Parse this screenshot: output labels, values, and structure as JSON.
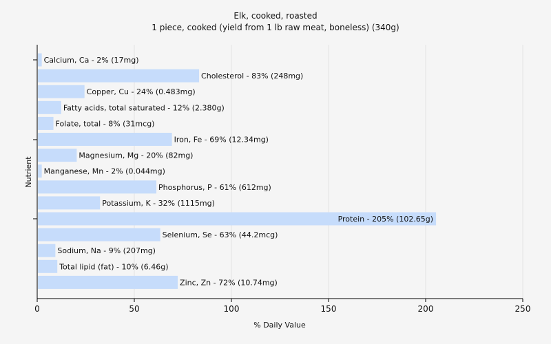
{
  "chart_data": {
    "type": "bar",
    "orientation": "horizontal",
    "title": "Elk, cooked, roasted",
    "subtitle": "1 piece, cooked (yield from 1 lb raw meat, boneless) (340g)",
    "xlabel": "% Daily Value",
    "ylabel": "Nutrient",
    "xlim": [
      0,
      250
    ],
    "xticks": [
      0,
      50,
      100,
      150,
      200,
      250
    ],
    "grid": true,
    "bar_color": "#c6dcfb",
    "categories": [
      "Calcium, Ca - 2% (17mg)",
      "Cholesterol - 83% (248mg)",
      "Copper, Cu - 24% (0.483mg)",
      "Fatty acids, total saturated - 12% (2.380g)",
      "Folate, total - 8% (31mcg)",
      "Iron, Fe - 69% (12.34mg)",
      "Magnesium, Mg - 20% (82mg)",
      "Manganese, Mn - 2% (0.044mg)",
      "Phosphorus, P - 61% (612mg)",
      "Potassium, K - 32% (1115mg)",
      "Protein - 205% (102.65g)",
      "Selenium, Se - 63% (44.2mcg)",
      "Sodium, Na - 9% (207mg)",
      "Total lipid (fat) - 10% (6.46g)",
      "Zinc, Zn - 72% (10.74mg)"
    ],
    "values": [
      2,
      83,
      24,
      12,
      8,
      69,
      20,
      2,
      61,
      32,
      205,
      63,
      9,
      10,
      72
    ]
  }
}
